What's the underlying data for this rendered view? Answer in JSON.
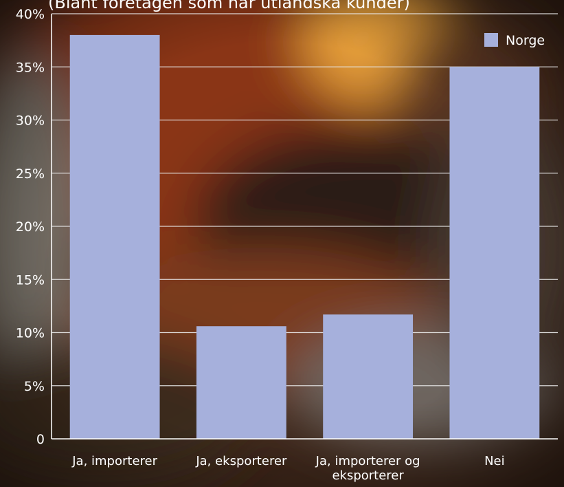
{
  "title": "(Blant foretagen som har utlandska kunder)",
  "colors": {
    "bar": "#a6b0dc",
    "grid": "#e8e8e8",
    "axis": "#ffffff",
    "text": "#ffffff"
  },
  "chart_data": {
    "type": "bar",
    "categories": [
      [
        "Ja, importerer"
      ],
      [
        "Ja, eksporterer"
      ],
      [
        "Ja, importerer og",
        "eksporterer"
      ],
      [
        "Nei"
      ]
    ],
    "series": [
      {
        "name": "Norge",
        "values": [
          38,
          10.6,
          11.7,
          35
        ]
      }
    ],
    "ylim": [
      0,
      40
    ],
    "yticks": [
      "0",
      "5%",
      "10%",
      "15%",
      "20%",
      "25%",
      "30%",
      "35%",
      "40%"
    ],
    "grid": true,
    "legend": "top-right"
  }
}
